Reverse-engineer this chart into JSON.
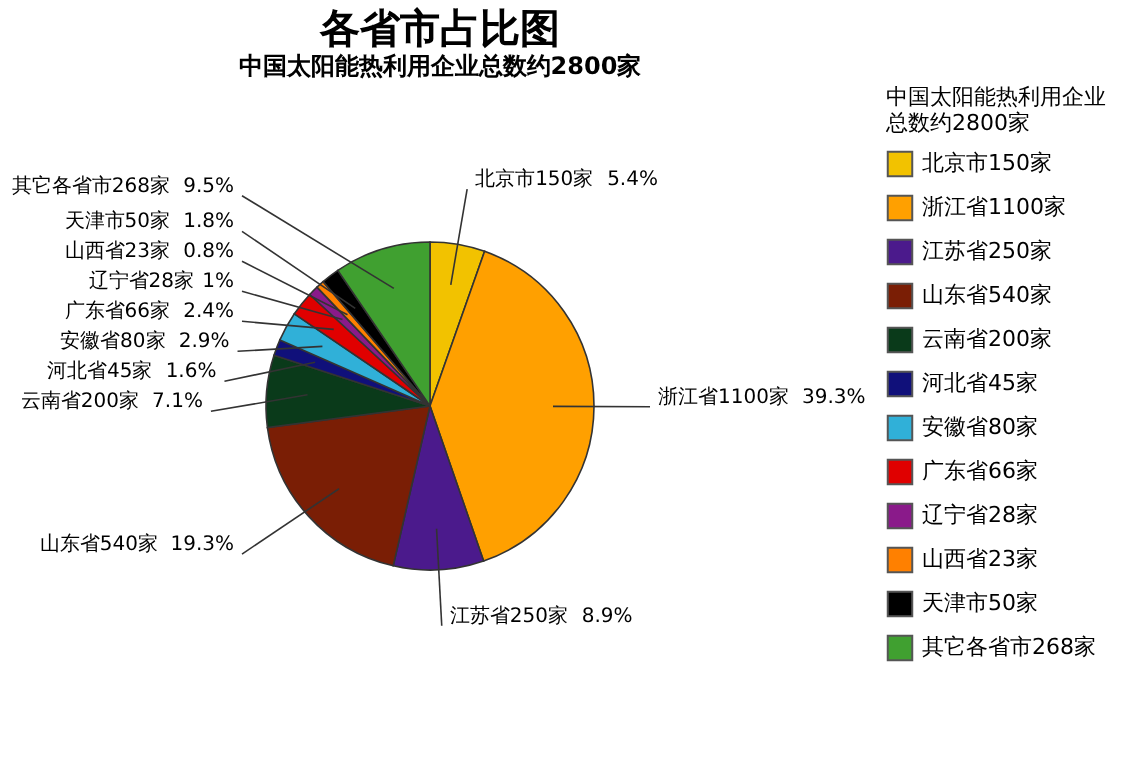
{
  "chart_data": {
    "type": "pie",
    "title": "各省市占比图",
    "subtitle": "中国太阳能热利用企业总数约2800家",
    "legend_title": "中国太阳能热利用企业总数约2800家",
    "categories": [
      "北京市150家",
      "浙江省1100家",
      "江苏省250家",
      "山东省540家",
      "云南省200家",
      "河北省45家",
      "安徽省80家",
      "广东省66家",
      "辽宁省28家",
      "山西省23家",
      "天津市50家",
      "其它各省市268家"
    ],
    "values": [
      5.4,
      39.3,
      8.9,
      19.3,
      7.1,
      1.6,
      2.9,
      2.4,
      1,
      0.8,
      1.8,
      9.5
    ],
    "colors": [
      "#f2c200",
      "#ffa000",
      "#4b1a8c",
      "#7a1e05",
      "#0a3a1a",
      "#10107a",
      "#30b0d8",
      "#e00000",
      "#8a1a8a",
      "#ff8000",
      "#000000",
      "#40a030"
    ],
    "value_labels": [
      "5.4%",
      "39.3%",
      "8.9%",
      "19.3%",
      "7.1%",
      "1.6%",
      "2.9%",
      "2.4%",
      "1%",
      "0.8%",
      "1.8%",
      "9.5%"
    ],
    "legend": "right"
  }
}
